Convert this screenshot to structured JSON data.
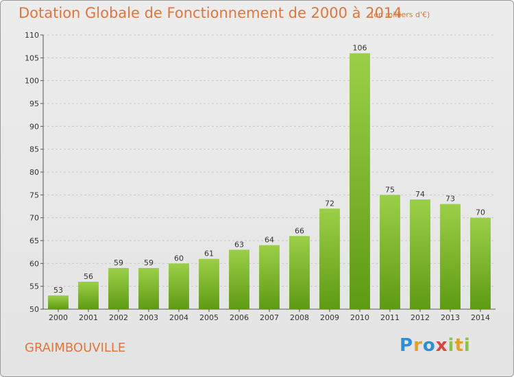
{
  "header": {
    "title": "Dotation Globale de Fonctionnement de 2000 à 2014",
    "unit": "(en milliers d'€)"
  },
  "footer": {
    "commune": "GRAIMBOUVILLE",
    "logo_text": "Proxiti",
    "logo_colors": [
      "#2d8fd6",
      "#e2a02a",
      "#8bc34a",
      "#d9453a"
    ]
  },
  "chart_data": {
    "type": "bar",
    "title": "Dotation Globale de Fonctionnement de 2000 à 2014",
    "subtitle": "(en milliers d'€)",
    "categories": [
      "2000",
      "2001",
      "2002",
      "2003",
      "2004",
      "2005",
      "2006",
      "2007",
      "2008",
      "2009",
      "2010",
      "2011",
      "2012",
      "2013",
      "2014"
    ],
    "values": [
      53,
      56,
      59,
      59,
      60,
      61,
      63,
      64,
      66,
      72,
      106,
      75,
      74,
      73,
      70
    ],
    "ylim": [
      50,
      110
    ],
    "yticks": [
      50,
      55,
      60,
      65,
      70,
      75,
      80,
      85,
      90,
      95,
      100,
      105,
      110
    ],
    "grid": true,
    "colors": {
      "bar_top": "#9ccf48",
      "bar_bottom": "#5e9a14",
      "grid": "#c8c8c8"
    }
  }
}
